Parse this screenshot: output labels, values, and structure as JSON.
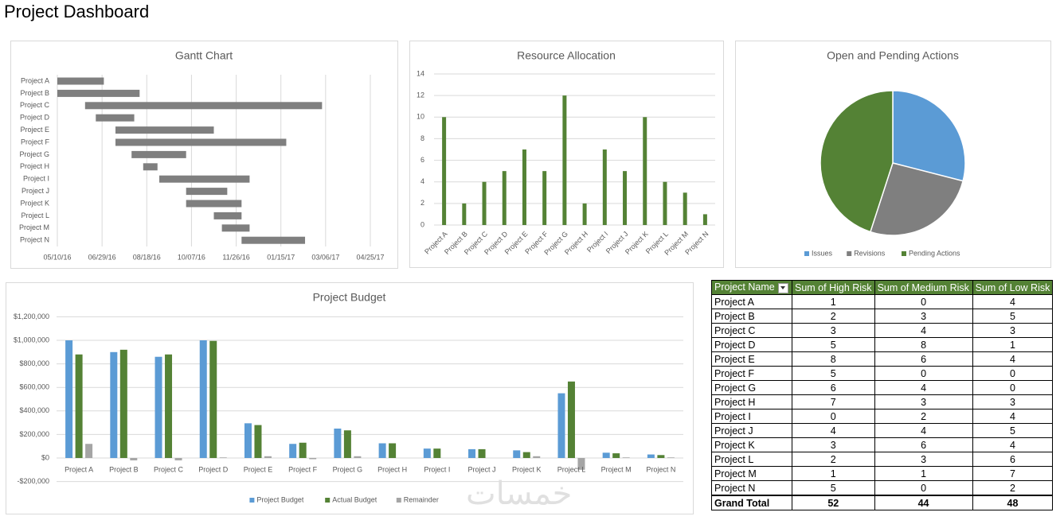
{
  "title": "Project Dashboard",
  "watermark": "خمسات",
  "chart_data": [
    {
      "type": "gantt",
      "title": "Gantt Chart",
      "categories": [
        "Project A",
        "Project B",
        "Project C",
        "Project D",
        "Project E",
        "Project F",
        "Project G",
        "Project H",
        "Project I",
        "Project J",
        "Project K",
        "Project L",
        "Project M",
        "Project N"
      ],
      "start": [
        42500,
        42500,
        42531,
        42543,
        42565,
        42565,
        42583,
        42596,
        42614,
        42644,
        42644,
        42675,
        42684,
        42706
      ],
      "end": [
        42552,
        42592,
        42796,
        42586,
        42675,
        42756,
        42644,
        42612,
        42715,
        42690,
        42706,
        42706,
        42715,
        42777
      ],
      "color": "#7f7f7f",
      "xlim": [
        42500,
        42850
      ],
      "xticks": [
        {
          "value": 42500,
          "label": "05/10/16"
        },
        {
          "value": 42550,
          "label": "06/29/16"
        },
        {
          "value": 42600,
          "label": "08/18/16"
        },
        {
          "value": 42650,
          "label": "10/07/16"
        },
        {
          "value": 42700,
          "label": "11/26/16"
        },
        {
          "value": 42750,
          "label": "01/15/17"
        },
        {
          "value": 42800,
          "label": "03/06/17"
        },
        {
          "value": 42850,
          "label": "04/25/17"
        }
      ],
      "grid": true
    },
    {
      "type": "bar",
      "title": "Resource Allocation",
      "categories": [
        "Project A",
        "Project B",
        "Project C",
        "Project D",
        "Project E",
        "Project F",
        "Project G",
        "Project H",
        "Project I",
        "Project J",
        "Project K",
        "Project L",
        "Project M",
        "Project N"
      ],
      "values": [
        10,
        2,
        4,
        5,
        7,
        5,
        12,
        2,
        7,
        5,
        10,
        4,
        3,
        1
      ],
      "color": "#548235",
      "ylim": [
        0,
        14
      ],
      "yticks": [
        0,
        2,
        4,
        6,
        8,
        10,
        12,
        14
      ],
      "grid": true
    },
    {
      "type": "pie",
      "title": "Open and Pending Actions",
      "categories": [
        "Issues",
        "Revisions",
        "Pending Actions"
      ],
      "values": [
        29,
        26,
        45
      ],
      "colors": [
        "#5b9bd5",
        "#7f7f7f",
        "#548235"
      ],
      "legend": "bottom"
    },
    {
      "type": "grouped-bar",
      "title": "Project Budget",
      "categories": [
        "Project A",
        "Project B",
        "Project C",
        "Project D",
        "Project E",
        "Project F",
        "Project G",
        "Project H",
        "Project I",
        "Project J",
        "Project K",
        "Project L",
        "Project M",
        "Project N"
      ],
      "series": [
        {
          "name": "Project Budget",
          "color": "#5b9bd5",
          "values": [
            1000000,
            900000,
            860000,
            1000000,
            295000,
            120000,
            250000,
            125000,
            80000,
            75000,
            65000,
            550000,
            45000,
            30000
          ]
        },
        {
          "name": "Actual Budget",
          "color": "#548235",
          "values": [
            880000,
            920000,
            880000,
            995000,
            280000,
            130000,
            235000,
            125000,
            80000,
            75000,
            50000,
            650000,
            40000,
            25000
          ]
        },
        {
          "name": "Remainder",
          "color": "#a5a5a5",
          "values": [
            120000,
            -20000,
            -20000,
            5000,
            15000,
            -10000,
            15000,
            0,
            0,
            0,
            15000,
            -100000,
            5000,
            5000
          ]
        }
      ],
      "ylim": [
        -200000,
        1200000
      ],
      "yticks": [
        {
          "value": -200000,
          "label": "-$200,000"
        },
        {
          "value": 0,
          "label": "$0"
        },
        {
          "value": 200000,
          "label": "$200,000"
        },
        {
          "value": 400000,
          "label": "$400,000"
        },
        {
          "value": 600000,
          "label": "$600,000"
        },
        {
          "value": 800000,
          "label": "$800,000"
        },
        {
          "value": 1000000,
          "label": "$1,000,000"
        },
        {
          "value": 1200000,
          "label": "$1,200,000"
        }
      ],
      "grid": true,
      "legend": "bottom"
    }
  ],
  "table": {
    "columns": [
      "Project Name",
      "Sum of High Risk",
      "Sum of Medium Risk",
      "Sum of Low Risk"
    ],
    "rows": [
      [
        "Project A",
        1,
        0,
        4
      ],
      [
        "Project B",
        2,
        3,
        5
      ],
      [
        "Project C",
        3,
        4,
        3
      ],
      [
        "Project D",
        5,
        8,
        1
      ],
      [
        "Project E",
        8,
        6,
        4
      ],
      [
        "Project F",
        5,
        0,
        0
      ],
      [
        "Project G",
        6,
        4,
        0
      ],
      [
        "Project H",
        7,
        3,
        3
      ],
      [
        "Project I",
        0,
        2,
        4
      ],
      [
        "Project J",
        4,
        4,
        5
      ],
      [
        "Project K",
        3,
        6,
        4
      ],
      [
        "Project L",
        2,
        3,
        6
      ],
      [
        "Project M",
        1,
        1,
        7
      ],
      [
        "Project N",
        5,
        0,
        2
      ]
    ],
    "total": [
      "Grand Total",
      52,
      44,
      48
    ]
  }
}
